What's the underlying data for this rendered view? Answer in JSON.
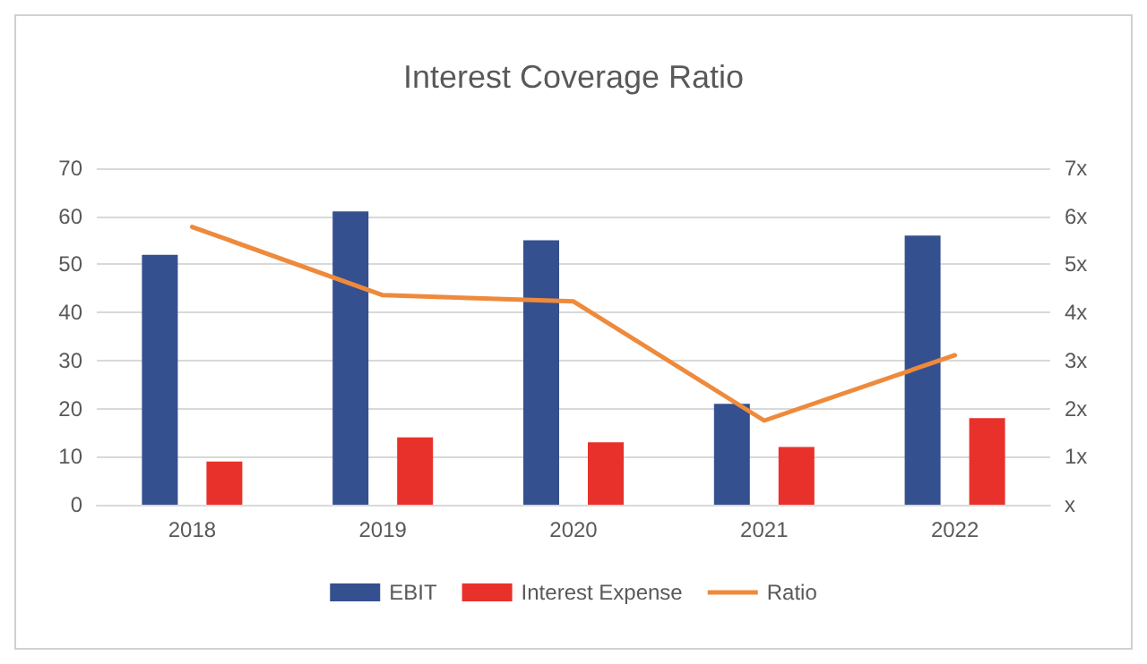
{
  "chart_data": {
    "type": "bar",
    "title": "Interest Coverage Ratio",
    "categories": [
      "2018",
      "2019",
      "2020",
      "2021",
      "2022"
    ],
    "series": [
      {
        "name": "EBIT",
        "color": "#35508f",
        "values": [
          52,
          61,
          55,
          21,
          56
        ]
      },
      {
        "name": "Interest Expense",
        "color": "#e8312a",
        "values": [
          9,
          14,
          13,
          12,
          18
        ]
      },
      {
        "name": "Ratio",
        "type": "line",
        "axis": "y2",
        "color": "#ee8a3c",
        "values": [
          5.78,
          4.36,
          4.23,
          1.75,
          3.11
        ]
      }
    ],
    "ylim": [
      0,
      70
    ],
    "yticks": [
      0,
      10,
      20,
      30,
      40,
      50,
      60,
      70
    ],
    "y2lim": [
      0,
      7
    ],
    "y2ticks": [
      {
        "value": 0,
        "label": "x"
      },
      {
        "value": 1,
        "label": "1x"
      },
      {
        "value": 2,
        "label": "2x"
      },
      {
        "value": 3,
        "label": "3x"
      },
      {
        "value": 4,
        "label": "4x"
      },
      {
        "value": 5,
        "label": "5x"
      },
      {
        "value": 6,
        "label": "6x"
      },
      {
        "value": 7,
        "label": "7x"
      }
    ],
    "grid": "y",
    "legend": "bottom",
    "marker": "none",
    "line_style": "solid"
  }
}
